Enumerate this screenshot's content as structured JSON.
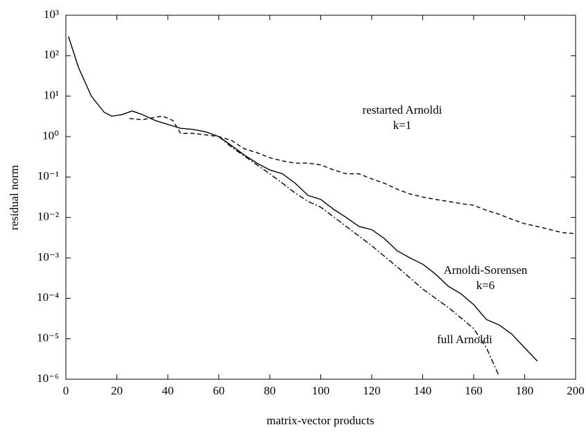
{
  "chart_data": {
    "type": "line",
    "xlabel": "matrix-vector products",
    "ylabel": "residual norm",
    "log_y": true,
    "xlim": [
      0,
      200
    ],
    "xticks": [
      0,
      20,
      40,
      60,
      80,
      100,
      120,
      140,
      160,
      180,
      200
    ],
    "ylim": [
      1e-06,
      1000
    ],
    "yticks": [
      {
        "value": 1e-06,
        "label": "10⁻⁶"
      },
      {
        "value": 1e-05,
        "label": "10⁻⁵"
      },
      {
        "value": 0.0001,
        "label": "10⁻⁴"
      },
      {
        "value": 0.001,
        "label": "10⁻³"
      },
      {
        "value": 0.01,
        "label": "10⁻²"
      },
      {
        "value": 0.1,
        "label": "10⁻¹"
      },
      {
        "value": 1,
        "label": "10⁰"
      },
      {
        "value": 10,
        "label": "10¹"
      },
      {
        "value": 100,
        "label": "10²"
      },
      {
        "value": 1000,
        "label": "10³"
      }
    ],
    "series": [
      {
        "color": "#000000",
        "dash": "solid",
        "x": [
          1,
          5,
          10,
          15,
          18,
          22,
          26,
          30,
          35,
          40,
          45,
          50,
          55,
          60,
          65,
          70,
          75,
          80,
          85,
          90,
          95,
          100,
          105,
          110,
          115,
          120,
          125,
          130,
          135,
          140,
          145,
          150,
          155,
          160,
          165,
          170,
          175,
          180,
          185
        ],
        "values": [
          300,
          50,
          10,
          4,
          3.2,
          3.5,
          4.3,
          3.5,
          2.5,
          2,
          1.6,
          1.5,
          1.3,
          1.0,
          0.6,
          0.35,
          0.22,
          0.15,
          0.12,
          0.07,
          0.035,
          0.028,
          0.016,
          0.01,
          0.006,
          0.005,
          0.003,
          0.0015,
          0.001,
          0.0007,
          0.0004,
          0.0002,
          0.00013,
          7e-05,
          3e-05,
          2.2e-05,
          1.3e-05,
          6e-06,
          2.8e-06
        ]
      },
      {
        "color": "#000000",
        "dash": "dashed",
        "x": [
          25,
          30,
          35,
          38,
          42,
          45,
          50,
          55,
          60,
          65,
          70,
          75,
          80,
          85,
          90,
          95,
          100,
          105,
          110,
          115,
          120,
          125,
          130,
          135,
          140,
          145,
          150,
          155,
          160,
          165,
          170,
          175,
          180,
          185,
          190,
          195,
          200
        ],
        "values": [
          2.8,
          2.6,
          3.0,
          3.2,
          2.5,
          1.2,
          1.2,
          1.1,
          1.0,
          0.8,
          0.5,
          0.4,
          0.3,
          0.25,
          0.22,
          0.22,
          0.2,
          0.15,
          0.12,
          0.12,
          0.09,
          0.07,
          0.05,
          0.038,
          0.032,
          0.028,
          0.025,
          0.022,
          0.02,
          0.015,
          0.012,
          0.009,
          0.007,
          0.006,
          0.005,
          0.0042,
          0.004
        ]
      },
      {
        "color": "#000000",
        "dash": "dashdot",
        "x": [
          60,
          65,
          70,
          75,
          80,
          85,
          90,
          95,
          100,
          110,
          120,
          130,
          140,
          150,
          160,
          165,
          170
        ],
        "values": [
          1.0,
          0.55,
          0.33,
          0.2,
          0.12,
          0.07,
          0.04,
          0.025,
          0.018,
          0.006,
          0.002,
          0.0006,
          0.00017,
          6e-05,
          1.8e-05,
          6e-06,
          1.2e-06
        ]
      }
    ],
    "annotations": [
      [
        "restarted Arnoldi",
        "k=1"
      ],
      [
        "Arnoldi-Sorensen",
        "k=6"
      ],
      [
        "full Arnoldi"
      ]
    ]
  }
}
